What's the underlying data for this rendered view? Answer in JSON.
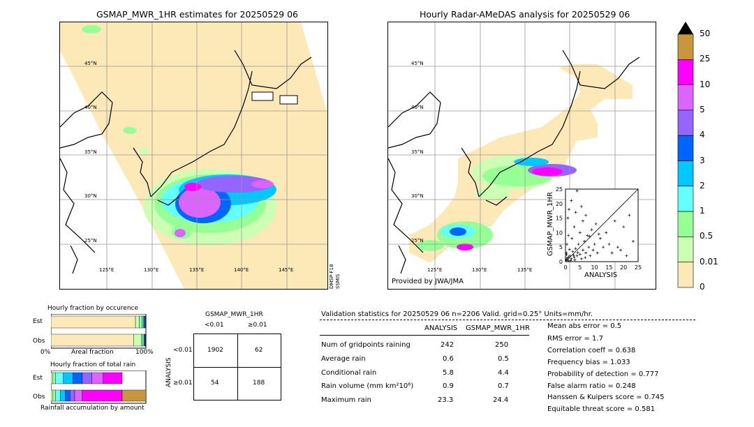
{
  "left_map": {
    "title": "GSMAP_MWR_1HR estimates for 20250529 06",
    "lat_labels": [
      "45°N",
      "40°N",
      "35°N",
      "30°N",
      "25°N"
    ],
    "lon_labels": [
      "125°E",
      "130°E",
      "135°E",
      "140°E",
      "145°E"
    ],
    "satellite_label": "DMSP-F18\nSSMIS",
    "sat_line1": "DMSP-F18",
    "sat_line2": "SSMIS"
  },
  "right_map": {
    "title": "Hourly Radar-AMeDAS analysis for 20250529 06",
    "lat_labels": [
      "45°N",
      "40°N",
      "35°N",
      "30°N",
      "25°N"
    ],
    "lon_labels": [
      "125°E",
      "130°E",
      "135°E"
    ],
    "provider": "Provided by JWA/JMA"
  },
  "colorbar": {
    "labels": [
      "50",
      "25",
      "10",
      "5",
      "4",
      "3",
      "2",
      "1",
      "0.5",
      "0.01",
      "0"
    ],
    "colors": [
      "#c8963c",
      "#ff00ff",
      "#dc64ff",
      "#9664ff",
      "#0064ff",
      "#00c8ff",
      "#64ffff",
      "#96ff96",
      "#ccffb4",
      "#fde8b8"
    ]
  },
  "inset_scatter": {
    "ylabel": "GSMAP_MWR_1HR",
    "xlabel": "ANALYSIS",
    "ticks": [
      "0",
      "5",
      "10",
      "15",
      "20",
      "25"
    ]
  },
  "fraction_occurrence": {
    "title": "Hourly fraction by occurence",
    "rows": [
      "Est",
      "Obs"
    ],
    "axis_left": "0%",
    "axis_mid": "Areal fraction",
    "axis_right": "100%"
  },
  "fraction_total": {
    "title": "Hourly fraction of total rain",
    "rows": [
      "Est",
      "Obs"
    ],
    "footer": "Rainfall accumulation by amount"
  },
  "contingency": {
    "title": "GSMAP_MWR_1HR",
    "col_labels": [
      "<0.01",
      "≥0.01"
    ],
    "row_labels": [
      "<0.01",
      "≥0.01"
    ],
    "side_label": "ANALYSIS",
    "cells": [
      "1902",
      "62",
      "54",
      "188"
    ]
  },
  "validation": {
    "header": "Validation statistics for 20250529 06  n=2206 Valid. grid=0.25° Units=mm/hr.",
    "col_analysis": "ANALYSIS",
    "col_est": "GSMAP_MWR_1HR",
    "rows": [
      {
        "label": "Num of gridpoints raining",
        "analysis": "242",
        "est": "250"
      },
      {
        "label": "Average rain",
        "analysis": "0.6",
        "est": "0.5"
      },
      {
        "label": "Conditional rain",
        "analysis": "5.8",
        "est": "4.4"
      },
      {
        "label": "Rain volume (mm km²10⁶)",
        "analysis": "0.9",
        "est": "0.7"
      },
      {
        "label": "Maximum rain",
        "analysis": "23.3",
        "est": "24.4"
      }
    ],
    "scores": [
      "Mean abs error =    0.5",
      "RMS error =    1.7",
      "Correlation coeff =  0.638",
      "Frequency bias =  1.033",
      "Probability of detection =  0.777",
      "False alarm ratio =  0.248",
      "Hanssen & Kuipers score =  0.745",
      "Equitable threat score =  0.581"
    ]
  },
  "chart_data": [
    {
      "type": "bar",
      "title": "Hourly fraction by occurence",
      "categories": [
        "Est",
        "Obs"
      ],
      "note": "stacked areal fraction by rain class",
      "series": [
        {
          "name": "0",
          "values": [
            0.89,
            0.87
          ]
        },
        {
          "name": "0.01",
          "values": [
            0.04,
            0.08
          ]
        },
        {
          "name": "0.5",
          "values": [
            0.03,
            0.02
          ]
        },
        {
          "name": "1",
          "values": [
            0.015,
            0.01
          ]
        },
        {
          "name": "2",
          "values": [
            0.01,
            0.008
          ]
        },
        {
          "name": "3",
          "values": [
            0.005,
            0.005
          ]
        },
        {
          "name": "4",
          "values": [
            0.005,
            0.004
          ]
        },
        {
          "name": "5",
          "values": [
            0.005,
            0.006
          ]
        }
      ]
    },
    {
      "type": "bar",
      "title": "Hourly fraction of total rain",
      "categories": [
        "Est",
        "Obs"
      ],
      "series": [
        {
          "name": "0.01",
          "values": [
            0.02,
            0.02
          ]
        },
        {
          "name": "0.5",
          "values": [
            0.03,
            0.03
          ]
        },
        {
          "name": "1",
          "values": [
            0.08,
            0.05
          ]
        },
        {
          "name": "2",
          "values": [
            0.1,
            0.05
          ]
        },
        {
          "name": "3",
          "values": [
            0.1,
            0.05
          ]
        },
        {
          "name": "4",
          "values": [
            0.1,
            0.05
          ]
        },
        {
          "name": "5",
          "values": [
            0.12,
            0.08
          ]
        },
        {
          "name": "10",
          "values": [
            0.2,
            0.42
          ]
        },
        {
          "name": "25",
          "values": [
            0.0,
            0.25
          ]
        }
      ]
    },
    {
      "type": "scatter",
      "xlabel": "ANALYSIS",
      "ylabel": "GSMAP_MWR_1HR",
      "xlim": [
        0,
        25
      ],
      "ylim": [
        0,
        25
      ],
      "points": [
        [
          0.2,
          0.5
        ],
        [
          0.5,
          1.2
        ],
        [
          1,
          0.3
        ],
        [
          1.5,
          2
        ],
        [
          2,
          1
        ],
        [
          2.5,
          3.5
        ],
        [
          3,
          1.5
        ],
        [
          3.5,
          4.5
        ],
        [
          4,
          2
        ],
        [
          4.5,
          6
        ],
        [
          5,
          2.5
        ],
        [
          5.5,
          1
        ],
        [
          6,
          4
        ],
        [
          6.5,
          7
        ],
        [
          7,
          3
        ],
        [
          7.5,
          9
        ],
        [
          8,
          5
        ],
        [
          8.5,
          2
        ],
        [
          9,
          11
        ],
        [
          9.5,
          4
        ],
        [
          10,
          6
        ],
        [
          10.5,
          13
        ],
        [
          11,
          3
        ],
        [
          12,
          8
        ],
        [
          13,
          5
        ],
        [
          14,
          10
        ],
        [
          15,
          6
        ],
        [
          16,
          3
        ],
        [
          17,
          14
        ],
        [
          18,
          5
        ],
        [
          19,
          4
        ],
        [
          20,
          12
        ],
        [
          21,
          2
        ],
        [
          22,
          16
        ],
        [
          23.3,
          7
        ],
        [
          0.8,
          15
        ],
        [
          1.2,
          18
        ],
        [
          2,
          21
        ],
        [
          3,
          12
        ],
        [
          3.5,
          17
        ],
        [
          4,
          24.4
        ],
        [
          5,
          10
        ],
        [
          5.5,
          19
        ],
        [
          6,
          14
        ],
        [
          7,
          16
        ],
        [
          1,
          9
        ],
        [
          0.5,
          6
        ],
        [
          2.2,
          8
        ],
        [
          0.3,
          3
        ],
        [
          0.6,
          0.8
        ],
        [
          1.1,
          1.6
        ],
        [
          1.8,
          0.4
        ],
        [
          0.4,
          2.4
        ],
        [
          2.8,
          2.2
        ],
        [
          1.4,
          4.2
        ],
        [
          3.2,
          0.6
        ],
        [
          4.2,
          3.1
        ],
        [
          6.8,
          1.4
        ],
        [
          8.2,
          8.8
        ],
        [
          11.5,
          9.5
        ]
      ]
    }
  ]
}
